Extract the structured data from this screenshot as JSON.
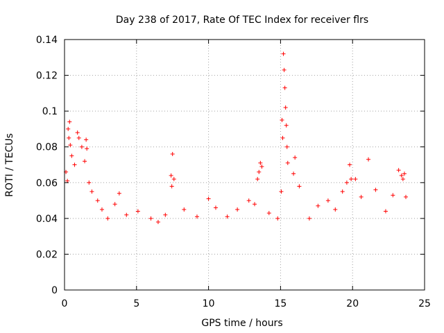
{
  "chart_data": {
    "type": "scatter",
    "title": "Day 238 of 2017, Rate Of TEC Index for receiver flrs",
    "xlabel": "GPS time / hours",
    "ylabel": "ROTI / TECUs",
    "xlim": [
      0,
      25
    ],
    "ylim": [
      0,
      0.14
    ],
    "xticks": [
      0,
      5,
      10,
      15,
      20,
      25
    ],
    "xtick_labels": [
      "0",
      "5",
      "10",
      "15",
      "20",
      "25"
    ],
    "yticks": [
      0,
      0.02,
      0.04,
      0.06,
      0.08,
      0.1,
      0.12,
      0.14
    ],
    "ytick_labels": [
      "0",
      "0.02",
      "0.04",
      "0.06",
      "0.08",
      "0.1",
      "0.12",
      "0.14"
    ],
    "grid": true,
    "marker": "+",
    "color": "#ff0000",
    "series": [
      {
        "name": "ROTI",
        "points": [
          [
            0.1,
            0.066
          ],
          [
            0.2,
            0.061
          ],
          [
            0.25,
            0.09
          ],
          [
            0.3,
            0.085
          ],
          [
            0.35,
            0.094
          ],
          [
            0.4,
            0.081
          ],
          [
            0.5,
            0.075
          ],
          [
            0.7,
            0.07
          ],
          [
            0.9,
            0.088
          ],
          [
            1.0,
            0.085
          ],
          [
            1.2,
            0.08
          ],
          [
            1.4,
            0.072
          ],
          [
            1.5,
            0.084
          ],
          [
            1.55,
            0.079
          ],
          [
            1.7,
            0.06
          ],
          [
            1.9,
            0.055
          ],
          [
            2.3,
            0.05
          ],
          [
            2.6,
            0.045
          ],
          [
            3.0,
            0.04
          ],
          [
            3.5,
            0.048
          ],
          [
            3.8,
            0.054
          ],
          [
            4.3,
            0.042
          ],
          [
            5.1,
            0.044
          ],
          [
            6.0,
            0.04
          ],
          [
            6.5,
            0.038
          ],
          [
            7.0,
            0.042
          ],
          [
            7.4,
            0.064
          ],
          [
            7.45,
            0.058
          ],
          [
            7.5,
            0.076
          ],
          [
            7.6,
            0.062
          ],
          [
            8.3,
            0.045
          ],
          [
            9.2,
            0.041
          ],
          [
            10.0,
            0.051
          ],
          [
            10.5,
            0.046
          ],
          [
            11.3,
            0.041
          ],
          [
            12.0,
            0.045
          ],
          [
            12.8,
            0.05
          ],
          [
            13.2,
            0.048
          ],
          [
            13.4,
            0.062
          ],
          [
            13.5,
            0.066
          ],
          [
            13.6,
            0.071
          ],
          [
            13.7,
            0.069
          ],
          [
            14.2,
            0.043
          ],
          [
            14.8,
            0.04
          ],
          [
            15.05,
            0.055
          ],
          [
            15.1,
            0.095
          ],
          [
            15.15,
            0.085
          ],
          [
            15.2,
            0.132
          ],
          [
            15.25,
            0.123
          ],
          [
            15.3,
            0.113
          ],
          [
            15.35,
            0.102
          ],
          [
            15.4,
            0.092
          ],
          [
            15.45,
            0.08
          ],
          [
            15.5,
            0.071
          ],
          [
            15.9,
            0.065
          ],
          [
            16.0,
            0.074
          ],
          [
            16.3,
            0.058
          ],
          [
            17.0,
            0.04
          ],
          [
            17.6,
            0.047
          ],
          [
            18.3,
            0.05
          ],
          [
            18.8,
            0.045
          ],
          [
            19.3,
            0.055
          ],
          [
            19.6,
            0.06
          ],
          [
            19.8,
            0.07
          ],
          [
            19.9,
            0.062
          ],
          [
            20.2,
            0.062
          ],
          [
            20.6,
            0.052
          ],
          [
            21.1,
            0.073
          ],
          [
            21.6,
            0.056
          ],
          [
            22.3,
            0.044
          ],
          [
            22.8,
            0.053
          ],
          [
            23.2,
            0.067
          ],
          [
            23.4,
            0.064
          ],
          [
            23.5,
            0.062
          ],
          [
            23.6,
            0.065
          ],
          [
            23.7,
            0.052
          ]
        ]
      }
    ]
  }
}
